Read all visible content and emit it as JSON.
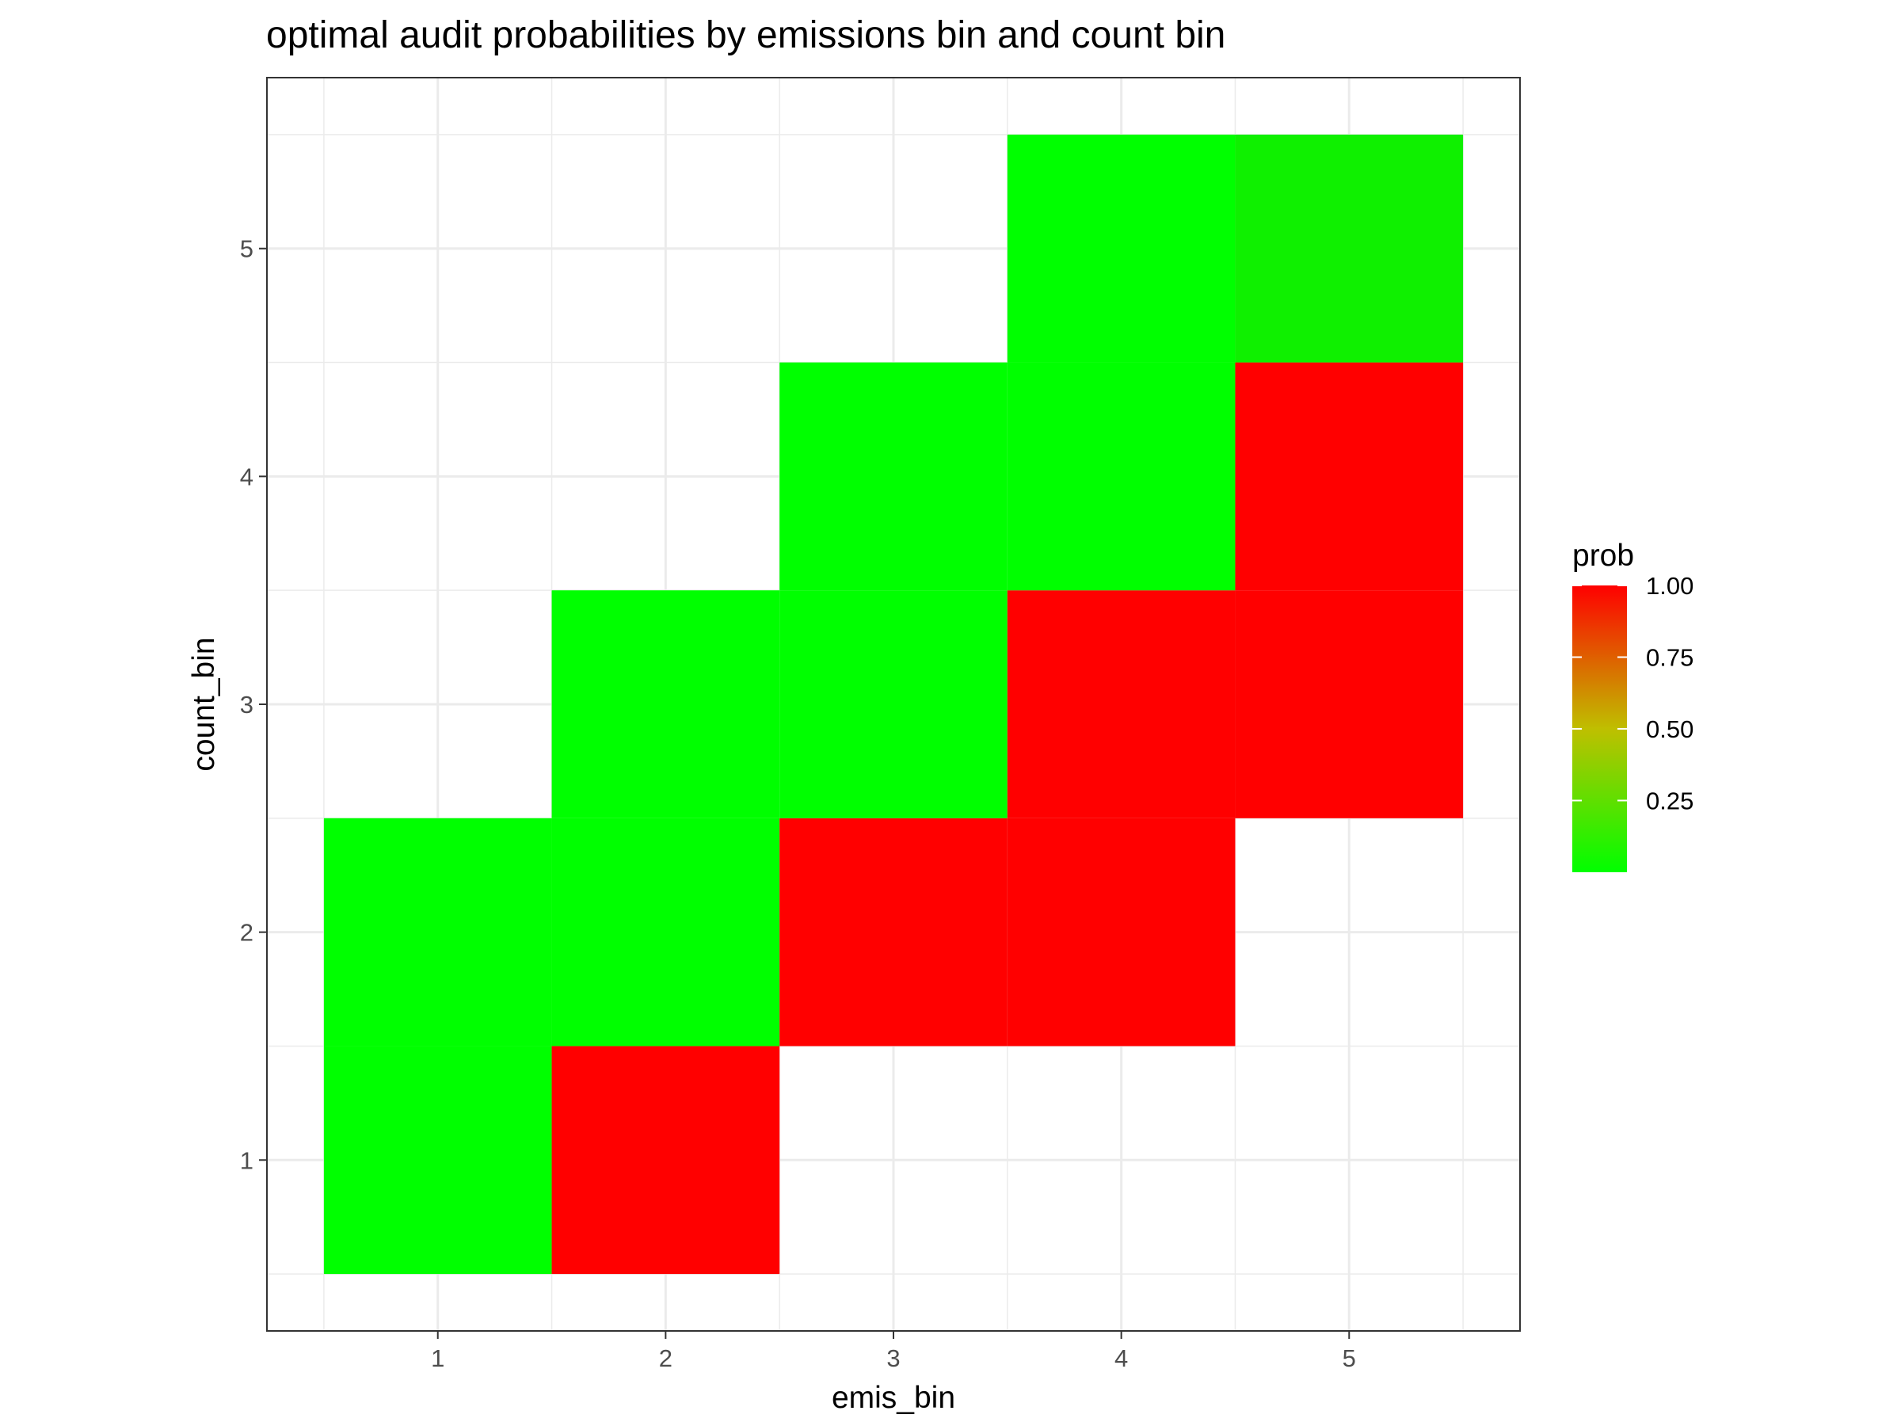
{
  "chart_data": {
    "type": "heatmap",
    "title": "optimal audit probabilities by emissions bin and count bin",
    "xlabel": "emis_bin",
    "ylabel": "count_bin",
    "x_ticks": [
      "1",
      "2",
      "3",
      "4",
      "5"
    ],
    "y_ticks": [
      "1",
      "2",
      "3",
      "4",
      "5"
    ],
    "xlim": [
      0.25,
      5.75
    ],
    "ylim": [
      0.25,
      5.75
    ],
    "grid": true,
    "legend": {
      "title": "prob",
      "placement": "right",
      "range": [
        0.0,
        1.0
      ],
      "ticks": [
        {
          "value": 1.0,
          "label": "1.00"
        },
        {
          "value": 0.75,
          "label": "0.75"
        },
        {
          "value": 0.5,
          "label": "0.50"
        },
        {
          "value": 0.25,
          "label": "0.25"
        }
      ],
      "low_color": "#00ff00",
      "high_color": "#ff0000"
    },
    "cells": [
      {
        "emis_bin": 1,
        "count_bin": 1,
        "prob": 0.0
      },
      {
        "emis_bin": 1,
        "count_bin": 2,
        "prob": 0.0
      },
      {
        "emis_bin": 2,
        "count_bin": 1,
        "prob": 1.0
      },
      {
        "emis_bin": 2,
        "count_bin": 2,
        "prob": 0.0
      },
      {
        "emis_bin": 2,
        "count_bin": 3,
        "prob": 0.0
      },
      {
        "emis_bin": 3,
        "count_bin": 2,
        "prob": 1.0
      },
      {
        "emis_bin": 3,
        "count_bin": 3,
        "prob": 0.0
      },
      {
        "emis_bin": 3,
        "count_bin": 4,
        "prob": 0.0
      },
      {
        "emis_bin": 4,
        "count_bin": 2,
        "prob": 1.0
      },
      {
        "emis_bin": 4,
        "count_bin": 3,
        "prob": 1.0
      },
      {
        "emis_bin": 4,
        "count_bin": 4,
        "prob": 0.0
      },
      {
        "emis_bin": 4,
        "count_bin": 5,
        "prob": 0.0
      },
      {
        "emis_bin": 5,
        "count_bin": 3,
        "prob": 1.0
      },
      {
        "emis_bin": 5,
        "count_bin": 4,
        "prob": 1.0
      },
      {
        "emis_bin": 5,
        "count_bin": 5,
        "prob": 0.06
      }
    ]
  }
}
